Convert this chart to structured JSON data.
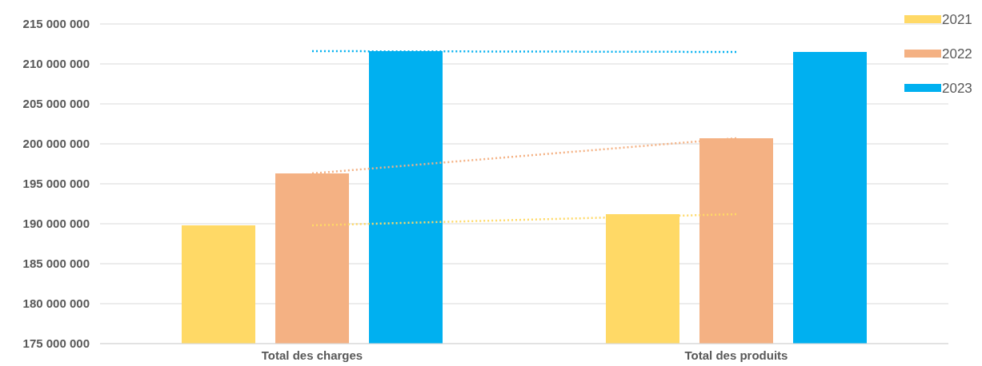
{
  "chart_data": {
    "type": "bar",
    "categories": [
      "Total des charges",
      "Total des produits"
    ],
    "series": [
      {
        "name": "2021",
        "color": "#ffd966",
        "values": [
          189800000,
          191200000
        ]
      },
      {
        "name": "2022",
        "color": "#f4b183",
        "values": [
          196300000,
          200700000
        ]
      },
      {
        "name": "2023",
        "color": "#00b0f0",
        "values": [
          211600000,
          211500000
        ]
      },
      {
        "type": "line",
        "color": "#ffd966",
        "x": [
          "Total des charges",
          "Total des produits"
        ],
        "values": [
          189800000,
          191200000
        ],
        "line_style": "dotted",
        "marker": "none"
      },
      {
        "type": "line",
        "color": "#f4b183",
        "x": [
          "Total des charges",
          "Total des produits"
        ],
        "values": [
          196300000,
          200700000
        ],
        "line_style": "dotted",
        "marker": "none"
      },
      {
        "type": "line",
        "color": "#00b0f0",
        "x": [
          "Total des charges",
          "Total des produits"
        ],
        "values": [
          211600000,
          211500000
        ],
        "line_style": "dotted",
        "marker": "none"
      }
    ],
    "ylim": [
      175000000,
      215000000
    ],
    "yticks": [
      {
        "value": 175000000,
        "label": "175 000 000"
      },
      {
        "value": 180000000,
        "label": "180 000 000"
      },
      {
        "value": 185000000,
        "label": "185 000 000"
      },
      {
        "value": 190000000,
        "label": "190 000 000"
      },
      {
        "value": 195000000,
        "label": "195 000 000"
      },
      {
        "value": 200000000,
        "label": "200 000 000"
      },
      {
        "value": 205000000,
        "label": "205 000 000"
      },
      {
        "value": 210000000,
        "label": "210 000 000"
      },
      {
        "value": 215000000,
        "label": "215 000 000"
      }
    ],
    "grid": "y",
    "legend": "top right"
  }
}
